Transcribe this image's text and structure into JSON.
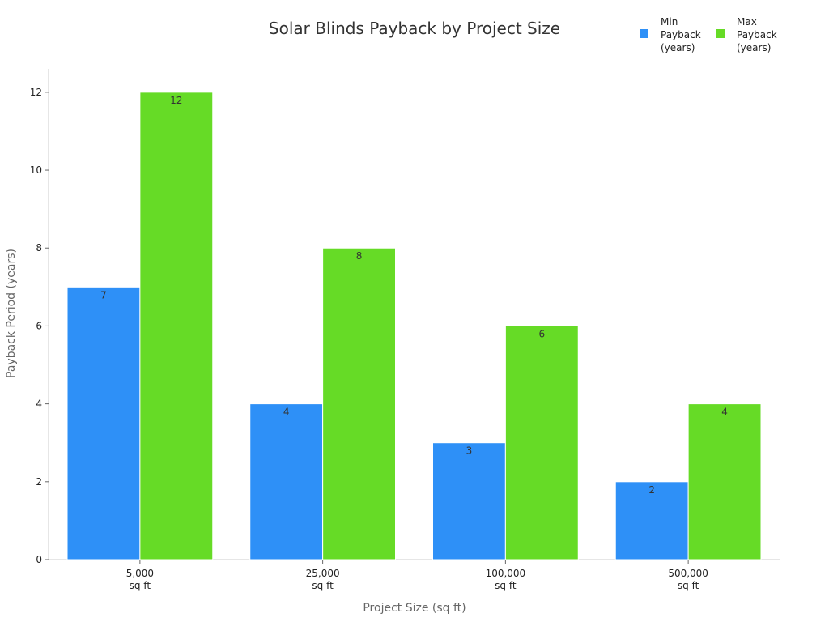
{
  "chart_data": {
    "type": "bar",
    "title": "Solar Blinds Payback by Project Size",
    "xlabel": "Project Size (sq ft)",
    "ylabel": "Payback Period (years)",
    "categories": [
      [
        "5,000",
        "sq ft"
      ],
      [
        "25,000",
        "sq ft"
      ],
      [
        "100,000",
        "sq ft"
      ],
      [
        "500,000",
        "sq ft"
      ]
    ],
    "series": [
      {
        "name": [
          "Min",
          "Payback",
          "(years)"
        ],
        "values": [
          7,
          4,
          3,
          2
        ],
        "color": "#2e90f7"
      },
      {
        "name": [
          "Max",
          "Payback",
          "(years)"
        ],
        "values": [
          12,
          8,
          6,
          4
        ],
        "color": "#66db26"
      }
    ],
    "ylim": [
      0,
      12.6
    ],
    "yticks": [
      "0",
      "2",
      "4",
      "6",
      "8",
      "10",
      "12"
    ],
    "grid": false,
    "legend_position": "top-right"
  }
}
